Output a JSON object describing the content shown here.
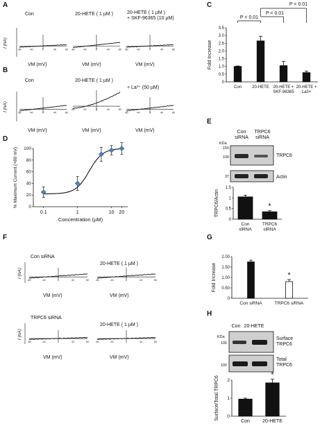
{
  "panels": {
    "A": {
      "letter": "A",
      "trace_labels": [
        "Con",
        "20-HETE ( 1 µM )",
        "20-HETE ( 1 µM )\n+ SKF-96365 (10 µM)"
      ],
      "ylabel": "I (nA)",
      "xlabel": "V_M (mV)",
      "ticks": [
        "-80",
        "-40",
        "0",
        "40",
        "80"
      ]
    },
    "B": {
      "letter": "B",
      "trace_labels": [
        "Con",
        "20-HETE ( 1 µM )",
        "+ La³⁺ (50 µM)"
      ],
      "ylabel": "I (nA)",
      "xlabel": "V_M (mV)"
    },
    "C": {
      "letter": "C",
      "sig": [
        "P < 0.01",
        "P < 0.01",
        "P < 0.01"
      ]
    },
    "D": {
      "letter": "D"
    },
    "E": {
      "letter": "E",
      "lanes": [
        "Con\nsiRNA",
        "TRPC6\nsiRNA"
      ],
      "kda_label": "KDa",
      "markers": [
        "150",
        "100",
        "37"
      ],
      "bands": [
        "TRPC6",
        "Actin"
      ]
    },
    "F": {
      "letter": "F",
      "labels": [
        "Con siRNA",
        "20-HETE ( 1 µM )",
        "TRPC6 siRNA",
        "20-HETE ( 1 µM )"
      ],
      "ticks": [
        "-80",
        "-40",
        "0",
        "40",
        "80"
      ]
    },
    "G": {
      "letter": "G"
    },
    "H": {
      "letter": "H",
      "lanes": [
        "Con",
        "20-HETE"
      ],
      "kda_label": "KDa",
      "markers": [
        "100",
        "100"
      ],
      "bands": [
        "Surface\nTRPC6",
        "Total\nTRPC6"
      ]
    }
  },
  "chart_data": [
    {
      "id": "C",
      "type": "bar",
      "categories": [
        "Con",
        "20-HETE",
        "20-HETE +\nSKF-96365",
        "20-HETE +\nLa3+"
      ],
      "values": [
        1.0,
        2.65,
        1.05,
        0.6
      ],
      "errors": [
        0.03,
        0.3,
        0.28,
        0.1
      ],
      "ylabel": "Fold Increase",
      "ylim": [
        0,
        3.5
      ],
      "yticks": [
        "0",
        "0.5",
        "1.0",
        "1.5",
        "2.0",
        "2.5",
        "3.0",
        "3.5"
      ],
      "bar_color": "#111111"
    },
    {
      "id": "D",
      "type": "line",
      "x": [
        0.1,
        1,
        5,
        10,
        20
      ],
      "y": [
        25,
        40,
        90,
        97,
        100
      ],
      "errors": [
        9,
        12,
        12,
        8,
        10
      ],
      "xscale": "log",
      "xticks": [
        "0.1",
        "1",
        "10",
        "20"
      ],
      "ylabel": "% Maximum Current (+80 mV)",
      "xlabel": "Concentration (µM)",
      "ylim": [
        0,
        100
      ],
      "yticks": [
        "0",
        "20",
        "40",
        "60",
        "80",
        "100"
      ],
      "point_color": "#4a7fc1"
    },
    {
      "id": "E",
      "type": "bar",
      "categories": [
        "Con\nsiRNA",
        "TRPC6\nsiRNA"
      ],
      "values": [
        1.05,
        0.35
      ],
      "errors": [
        0.08,
        0.05
      ],
      "ylabel": "TRPC6/Actin",
      "ylim": [
        0,
        1.5
      ],
      "yticks": [
        "0",
        "0.5",
        "1",
        "1.5"
      ],
      "significance": "*",
      "bar_fills": [
        "#111111",
        "#111111"
      ]
    },
    {
      "id": "G",
      "type": "bar",
      "categories": [
        "Con siRNA",
        "TRPC6 siRNA"
      ],
      "values": [
        1.75,
        0.8
      ],
      "errors": [
        0.08,
        0.1
      ],
      "ylabel": "Fold Increase",
      "ylim": [
        0,
        2.0
      ],
      "yticks": [
        "0",
        "0.50",
        "1.00",
        "1.50",
        "2.00"
      ],
      "significance": "*",
      "bar_fills": [
        "#111111",
        "#ffffff"
      ]
    },
    {
      "id": "H",
      "type": "bar",
      "categories": [
        "Con",
        "20-HETE"
      ],
      "values": [
        0.95,
        1.85
      ],
      "errors": [
        0.05,
        0.2
      ],
      "ylabel": "Surface/Total TRPC6",
      "ylim": [
        0,
        2
      ],
      "yticks": [
        "0",
        "1",
        "2"
      ],
      "significance": "*",
      "bar_fills": [
        "#111111",
        "#111111"
      ]
    }
  ]
}
